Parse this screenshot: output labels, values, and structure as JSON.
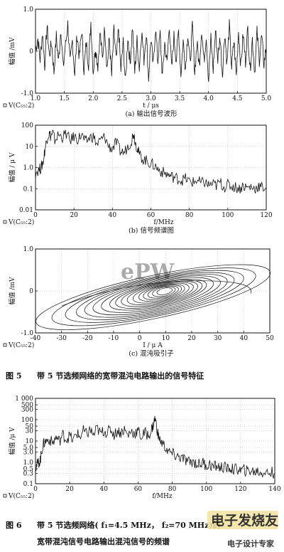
{
  "figure5": {
    "caption_prefix": "图 5",
    "caption": "带 5 节选频网络的宽带混沌电路输出的信号特征"
  },
  "figure6": {
    "caption_prefix": "图 6",
    "caption_line1": "带 5 节选频网络( f₁=4.5 MHz， f₂=70 MHz)的",
    "caption_line2": "宽带混沌信号电路输出混沌信号的频谱"
  },
  "watermark": {
    "top": "ePW",
    "bottom_main": "电子发烧友",
    "bottom_sub": "电子设计专家"
  },
  "chart_data": [
    {
      "id": "a",
      "type": "line",
      "subtitle": "(a) 输出信号波形",
      "legend": "V(C₅₅:2)",
      "xlabel": "t / μs",
      "ylabel": "幅值 /mV",
      "xlim": [
        1.0,
        5.0
      ],
      "ylim": [
        -1.0,
        1.0
      ],
      "xticks": [
        1.0,
        1.5,
        2.0,
        2.5,
        3.0,
        3.5,
        4.0,
        4.5,
        5.0
      ],
      "xtick_labels": [
        "1.0",
        "1.5",
        "2.0",
        "2.5",
        "3.0",
        "3.5",
        "4.0",
        "4.5",
        "5.0"
      ],
      "yticks": [
        -1.0,
        0,
        1.0
      ],
      "ytick_labels": [
        "-1.0",
        "0",
        "1.0"
      ],
      "grid": true,
      "x": [
        1.0,
        1.04,
        1.08,
        1.12,
        1.16,
        1.2,
        1.24,
        1.28,
        1.32,
        1.36,
        1.4,
        1.44,
        1.48,
        1.52,
        1.56,
        1.6,
        1.64,
        1.68,
        1.72,
        1.76,
        1.8,
        1.84,
        1.88,
        1.92,
        1.96,
        2.0,
        2.04,
        2.08,
        2.12,
        2.16,
        2.2,
        2.24,
        2.28,
        2.32,
        2.36,
        2.4,
        2.44,
        2.48,
        2.52,
        2.56,
        2.6,
        2.64,
        2.68,
        2.72,
        2.76,
        2.8,
        2.84,
        2.88,
        2.92,
        2.96,
        3.0,
        3.04,
        3.08,
        3.12,
        3.16,
        3.2,
        3.24,
        3.28,
        3.32,
        3.36,
        3.4,
        3.44,
        3.48,
        3.52,
        3.56,
        3.6,
        3.64,
        3.68,
        3.72,
        3.76,
        3.8,
        3.84,
        3.88,
        3.92,
        3.96,
        4.0,
        4.04,
        4.08,
        4.12,
        4.16,
        4.2,
        4.24,
        4.28,
        4.32,
        4.36,
        4.4,
        4.44,
        4.48,
        4.52,
        4.56,
        4.6,
        4.64,
        4.68,
        4.72,
        4.76,
        4.8,
        4.84,
        4.88,
        4.92,
        4.96,
        5.0
      ],
      "values": [
        0.05,
        0.3,
        -0.2,
        0.45,
        -0.35,
        0.6,
        -0.1,
        0.2,
        -0.5,
        0.35,
        -0.25,
        0.55,
        -0.4,
        0.15,
        0.65,
        -0.3,
        0.25,
        -0.55,
        0.4,
        -0.15,
        0.5,
        -0.45,
        0.2,
        -0.3,
        0.7,
        -0.5,
        0.1,
        -0.35,
        0.45,
        -0.2,
        0.6,
        -0.4,
        0.3,
        -0.6,
        0.5,
        -0.25,
        0.55,
        -0.45,
        0.2,
        -0.75,
        0.35,
        -0.3,
        0.6,
        -0.5,
        0.25,
        -0.4,
        0.5,
        -0.2,
        0.45,
        -0.65,
        0.3,
        -0.35,
        0.55,
        -0.25,
        0.4,
        -0.6,
        0.2,
        -0.3,
        0.65,
        -0.45,
        0.35,
        -0.2,
        0.5,
        -0.55,
        0.25,
        -0.4,
        0.45,
        -0.3,
        0.6,
        -0.5,
        0.2,
        -0.35,
        0.55,
        -0.25,
        0.4,
        -0.7,
        0.3,
        -0.45,
        0.5,
        -0.2,
        0.35,
        -0.55,
        0.45,
        -0.3,
        0.6,
        -0.4,
        0.25,
        -0.6,
        0.5,
        -0.35,
        0.4,
        -0.25,
        0.55,
        -0.45,
        0.3,
        -0.5,
        0.45,
        -0.2,
        0.35,
        -0.3,
        0.1
      ]
    },
    {
      "id": "b",
      "type": "line",
      "subtitle": "(b) 信号频谱图",
      "legend": "V(C₅₅:2)",
      "xlabel": "f/MHz",
      "ylabel": "幅值 / μ V",
      "xscale": "linear",
      "yscale": "log",
      "xlim": [
        0,
        120
      ],
      "ylim": [
        0.01,
        100
      ],
      "xticks": [
        0,
        20,
        40,
        60,
        80,
        100,
        120
      ],
      "xtick_labels": [
        "0",
        "20",
        "40",
        "60",
        "80",
        "100",
        "120"
      ],
      "yticks": [
        0.01,
        0.1,
        1,
        10,
        100
      ],
      "ytick_labels": [
        "0.01",
        "0.1",
        "1.0",
        "10",
        "100"
      ],
      "grid": true,
      "x": [
        0,
        2,
        3,
        4,
        5,
        6,
        7,
        8,
        9,
        10,
        12,
        14,
        16,
        18,
        20,
        22,
        24,
        26,
        28,
        30,
        32,
        34,
        36,
        38,
        40,
        42,
        44,
        46,
        48,
        50,
        51,
        52,
        53,
        54,
        56,
        58,
        60,
        62,
        64,
        66,
        68,
        70,
        72,
        74,
        76,
        78,
        80,
        82,
        84,
        86,
        88,
        90,
        92,
        94,
        96,
        98,
        100,
        102,
        104,
        106,
        108,
        110,
        112,
        114,
        116,
        118,
        120
      ],
      "values": [
        0.6,
        0.8,
        1.0,
        2.0,
        8,
        25,
        40,
        30,
        45,
        20,
        35,
        28,
        40,
        18,
        30,
        22,
        35,
        15,
        25,
        30,
        12,
        20,
        28,
        10,
        8,
        15,
        6,
        5,
        10,
        20,
        45,
        15,
        8,
        4,
        2.5,
        2,
        1.5,
        1.2,
        0.8,
        0.6,
        0.5,
        0.4,
        0.35,
        0.3,
        0.25,
        0.3,
        0.22,
        0.2,
        0.25,
        0.18,
        0.2,
        0.15,
        0.16,
        0.14,
        0.2,
        0.12,
        0.15,
        0.13,
        0.12,
        0.1,
        0.14,
        0.11,
        0.12,
        0.1,
        0.13,
        0.11,
        0.12
      ]
    },
    {
      "id": "c",
      "type": "line",
      "subtitle": "(c) 混沌吸引子",
      "legend": "V(C₅₅:2)",
      "xlabel": "I / μ A",
      "ylabel": "幅值 /mV",
      "xlim": [
        -40,
        50
      ],
      "ylim": [
        -1.0,
        1.0
      ],
      "xticks": [
        -40,
        -30,
        -20,
        -10,
        0,
        10,
        20,
        30,
        40,
        50
      ],
      "xtick_labels": [
        "-40",
        "-30",
        "-20",
        "-10",
        "0",
        "10",
        "20",
        "30",
        "40",
        "50"
      ],
      "yticks": [
        -1.0,
        0,
        1.0
      ],
      "ytick_labels": [
        "-1.0",
        "0",
        "1.0"
      ],
      "grid": true
    },
    {
      "id": "fig6",
      "type": "line",
      "legend": "V(C₅₅:2)",
      "xlabel": "f/MHz",
      "ylabel": "幅值 /μ V",
      "xscale": "linear",
      "yscale": "log",
      "xlim": [
        0,
        140
      ],
      "ylim": [
        0.1,
        1000
      ],
      "xticks": [
        0,
        20,
        40,
        60,
        80,
        100,
        120,
        140
      ],
      "xtick_labels": [
        "0",
        "20",
        "40",
        "60",
        "80",
        "100",
        "120",
        "140"
      ],
      "yticks": [
        0.1,
        0.3,
        0.5,
        1.0,
        3.0,
        5.0,
        10,
        30,
        50,
        100,
        300,
        500,
        1000
      ],
      "ytick_labels": [
        "0.1",
        "0.3",
        "0.5",
        "1.0",
        "3.0",
        "5.0",
        "10",
        "30",
        "50",
        "100",
        "300",
        "500",
        "1 000"
      ],
      "grid": true,
      "x": [
        0,
        1,
        2,
        3,
        4,
        5,
        6,
        8,
        10,
        12,
        14,
        16,
        18,
        20,
        22,
        24,
        26,
        28,
        30,
        32,
        34,
        36,
        38,
        40,
        42,
        44,
        46,
        48,
        50,
        52,
        54,
        56,
        58,
        60,
        62,
        64,
        66,
        68,
        69,
        70,
        71,
        72,
        74,
        76,
        78,
        80,
        82,
        84,
        86,
        88,
        90,
        92,
        94,
        96,
        98,
        100,
        102,
        104,
        106,
        108,
        110,
        112,
        114,
        116,
        118,
        120,
        122,
        124,
        126,
        128,
        130,
        132,
        134,
        136,
        138,
        140
      ],
      "values": [
        0.6,
        0.8,
        1.0,
        1.5,
        5,
        8,
        10,
        12,
        8,
        15,
        10,
        20,
        12,
        18,
        10,
        25,
        15,
        30,
        20,
        35,
        18,
        40,
        22,
        30,
        25,
        35,
        20,
        30,
        25,
        35,
        18,
        30,
        22,
        30,
        15,
        25,
        18,
        35,
        60,
        120,
        40,
        15,
        8,
        5,
        3,
        2.5,
        2,
        1.8,
        1.5,
        1.2,
        1.0,
        1.1,
        0.9,
        0.8,
        1.0,
        0.7,
        0.8,
        0.6,
        0.7,
        0.55,
        0.6,
        0.5,
        0.55,
        0.45,
        0.5,
        0.4,
        0.45,
        0.38,
        0.42,
        0.35,
        0.4,
        0.32,
        0.38,
        0.3,
        0.35,
        0.3
      ]
    }
  ]
}
